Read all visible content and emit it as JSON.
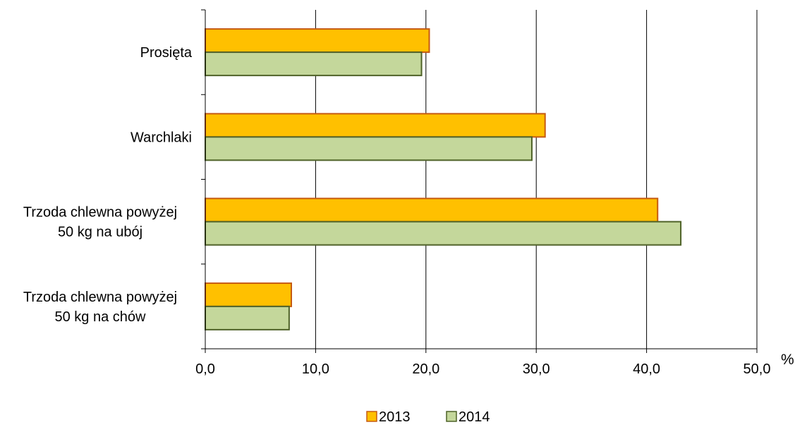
{
  "chart_data": {
    "type": "bar",
    "orientation": "horizontal",
    "categories": [
      [
        "Prosięta"
      ],
      [
        "Warchlaki"
      ],
      [
        "Trzoda chlewna powyżej",
        "50 kg na ubój"
      ],
      [
        "Trzoda chlewna powyżej",
        "50 kg na chów"
      ]
    ],
    "series": [
      {
        "name": "2013",
        "values": [
          20.3,
          30.8,
          41.0,
          7.8
        ],
        "color": "#FFC000",
        "stroke": "#C55A11"
      },
      {
        "name": "2014",
        "values": [
          19.6,
          29.6,
          43.1,
          7.6
        ],
        "color": "#C4D79B",
        "stroke": "#4F6228"
      }
    ],
    "xlim": [
      0,
      50
    ],
    "xticks": [
      "0,0",
      "10,0",
      "20,0",
      "30,0",
      "40,0",
      "50,0"
    ],
    "xunit": "%",
    "grid": "vertical",
    "legend": "bottom"
  }
}
